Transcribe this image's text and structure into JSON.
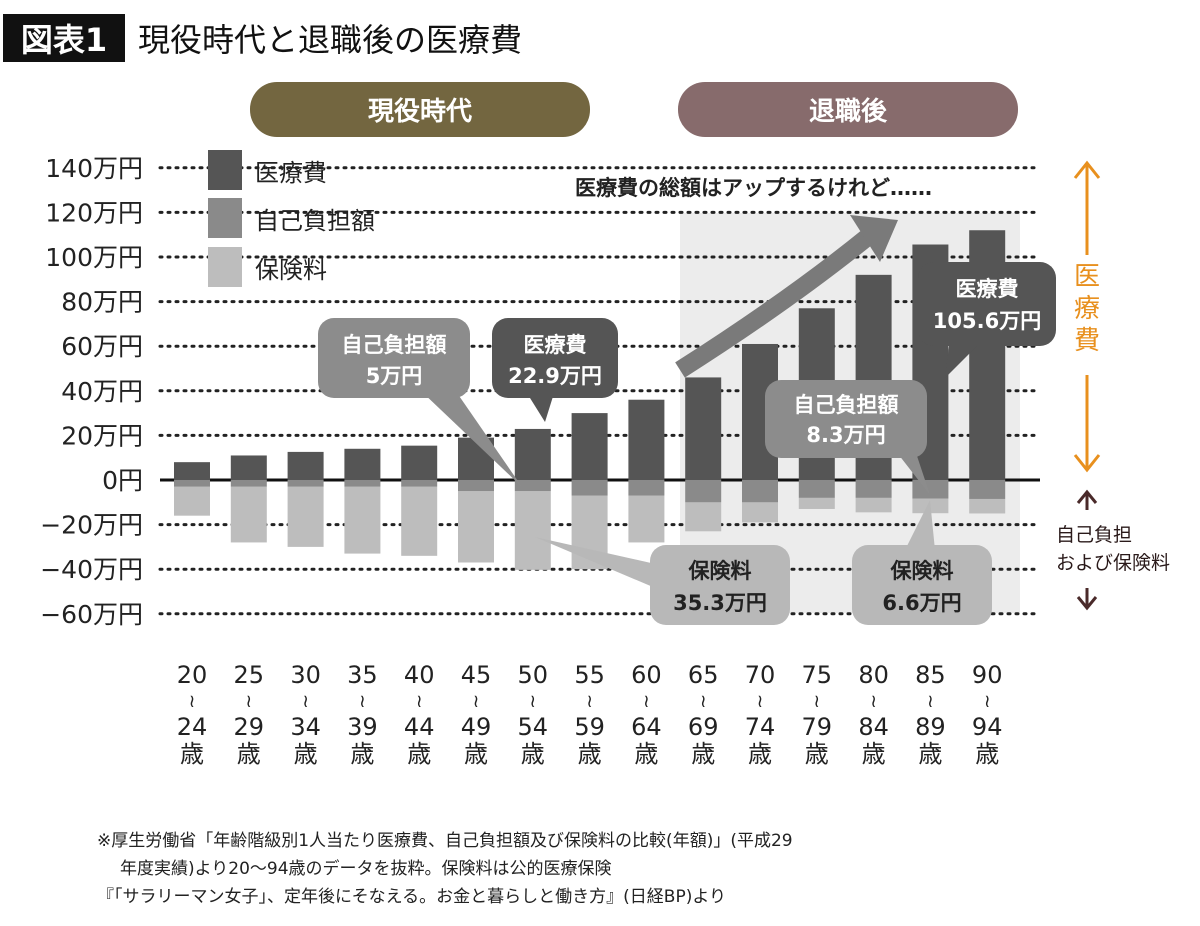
{
  "header": {
    "badge": "図表1",
    "title": "現役時代と退職後の医療費"
  },
  "periods": [
    {
      "label": "現役時代",
      "color": "#736640"
    },
    {
      "label": "退職後",
      "color": "#876b6c"
    }
  ],
  "chart_data": {
    "type": "bar",
    "title": "現役時代と退職後の医療費",
    "categories": [
      "20〜24歳",
      "25〜29歳",
      "30〜34歳",
      "35〜39歳",
      "40〜44歳",
      "45〜49歳",
      "50〜54歳",
      "55〜59歳",
      "60〜64歳",
      "65〜69歳",
      "70〜74歳",
      "75〜79歳",
      "80〜84歳",
      "85〜89歳",
      "90〜94歳"
    ],
    "category_ticks": [
      [
        "20",
        "24"
      ],
      [
        "25",
        "29"
      ],
      [
        "30",
        "34"
      ],
      [
        "35",
        "39"
      ],
      [
        "40",
        "44"
      ],
      [
        "45",
        "49"
      ],
      [
        "50",
        "54"
      ],
      [
        "55",
        "59"
      ],
      [
        "60",
        "64"
      ],
      [
        "65",
        "69"
      ],
      [
        "70",
        "74"
      ],
      [
        "75",
        "79"
      ],
      [
        "80",
        "84"
      ],
      [
        "85",
        "89"
      ],
      [
        "90",
        "94"
      ]
    ],
    "category_sep": "≀",
    "category_unit": "歳",
    "unit": "万円",
    "series": [
      {
        "name": "医療費",
        "direction": "up",
        "color": "#555555",
        "values": [
          8,
          11,
          12.6,
          14,
          15.4,
          19,
          22.9,
          30,
          36,
          46,
          61,
          77,
          92,
          105.6,
          112
        ]
      },
      {
        "name": "自己負担額",
        "direction": "down",
        "color": "#8a8a8a",
        "values": [
          3,
          3,
          3,
          3,
          3,
          5,
          5,
          7,
          7,
          10,
          10,
          8,
          8,
          8.3,
          8.5
        ]
      },
      {
        "name": "保険料",
        "direction": "down",
        "color": "#bdbdbd",
        "values": [
          13,
          25,
          27,
          30,
          31,
          32,
          35.3,
          33,
          21,
          13,
          9,
          5,
          6.5,
          6.6,
          6.5
        ]
      }
    ],
    "ylim": [
      -60,
      140
    ],
    "yticks": [
      140,
      120,
      100,
      80,
      60,
      40,
      20,
      0,
      -20,
      -40,
      -60
    ],
    "ytick_labels": [
      "140万円",
      "120万円",
      "100万円",
      "80万円",
      "60万円",
      "40万円",
      "20万円",
      "0円",
      "−20万円",
      "−40万円",
      "−60万円"
    ],
    "grid": "dotted horizontal",
    "legend": "top-left",
    "shaded_region": "65〜94歳",
    "annotations": {
      "trend": "医療費の総額はアップするけれど……",
      "c1": [
        "自己負担額",
        "5万円"
      ],
      "c2": [
        "医療費",
        "22.9万円"
      ],
      "c3": [
        "医療費",
        "105.6万円"
      ],
      "c4": [
        "自己負担額",
        "8.3万円"
      ],
      "c5": [
        "保険料",
        "35.3万円"
      ],
      "c6": [
        "保険料",
        "6.6万円"
      ]
    },
    "side_labels": {
      "top": "医療費",
      "top_color": "#e8901e",
      "bottom_1": "自己負担",
      "bottom_2": "および保険料",
      "bottom_color": "#4a2a2a"
    }
  },
  "footnote": [
    "※厚生労働省「年齢階級別1人当たり医療費、自己負担額及び保険料の比較(年額)」(平成29",
    "年度実績)より20〜94歳のデータを抜粋。保険料は公的医療保険",
    "『「サラリーマン女子」、定年後にそなえる。お金と暮らしと働き方』(日経BP)より"
  ]
}
